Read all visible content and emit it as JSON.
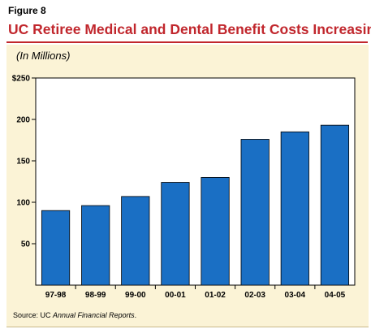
{
  "header": {
    "figure_label": "Figure 8",
    "title": "UC Retiree Medical and Dental Benefit Costs Increasing"
  },
  "unit_note": "(In Millions)",
  "source": {
    "prefix": "Source: UC ",
    "italic": "Annual Financial Reports",
    "suffix": "."
  },
  "colors": {
    "title": "#c1272d",
    "bar": "#1a6fc4",
    "panel": "#fbf3d6",
    "plot_bg": "#ffffff"
  },
  "chart_data": {
    "type": "bar",
    "title": "UC Retiree Medical and Dental Benefit Costs Increasing",
    "xlabel": "",
    "ylabel": "(In Millions)",
    "categories": [
      "97-98",
      "98-99",
      "99-00",
      "00-01",
      "01-02",
      "02-03",
      "03-04",
      "04-05"
    ],
    "values": [
      90,
      96,
      107,
      124,
      130,
      176,
      185,
      193
    ],
    "ylim": [
      0,
      250
    ],
    "yticks": [
      50,
      100,
      150,
      200,
      250
    ],
    "ytick_labels": [
      "50",
      "100",
      "150",
      "200",
      "$250"
    ],
    "grid": false,
    "legend": "none"
  }
}
